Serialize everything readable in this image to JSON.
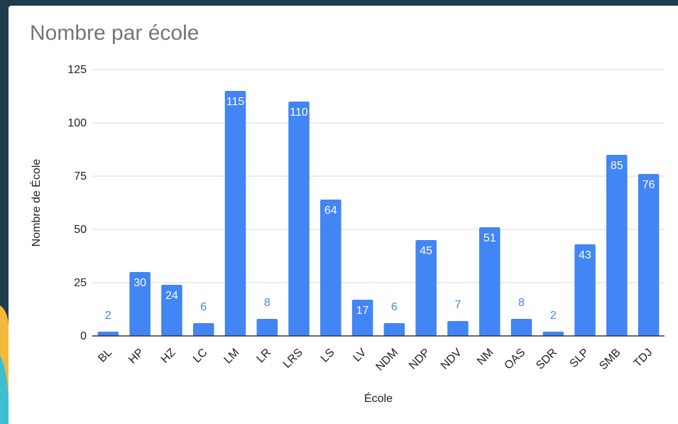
{
  "chart_data": {
    "type": "bar",
    "title": "Nombre par école",
    "xlabel": "École",
    "ylabel": "Nombre de École",
    "categories": [
      "BL",
      "HP",
      "HZ",
      "LC",
      "LM",
      "LR",
      "LRS",
      "LS",
      "LV",
      "NDM",
      "NDP",
      "NDV",
      "NM",
      "OAS",
      "SDR",
      "SLP",
      "SMB",
      "TDJ"
    ],
    "values": [
      2,
      30,
      24,
      6,
      115,
      8,
      110,
      64,
      17,
      6,
      45,
      7,
      51,
      8,
      2,
      43,
      85,
      76
    ],
    "ylim": [
      0,
      125
    ],
    "yticks": [
      0,
      25,
      50,
      75,
      100,
      125
    ],
    "grid": true,
    "legend": "none",
    "bar_color": "#4285f4",
    "label_inside_color": "#ffffff",
    "label_outside_color": "#4285f4"
  },
  "colors": {
    "background": "#1f3b4d",
    "card": "#ffffff",
    "title": "#757575",
    "grid": "#d9d9d9",
    "axis": "#333333"
  }
}
